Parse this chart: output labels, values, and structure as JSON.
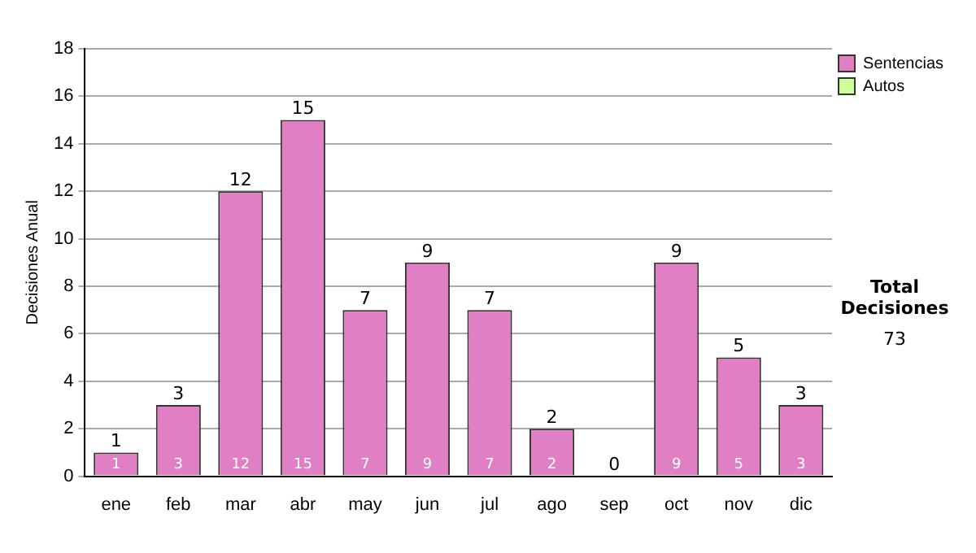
{
  "chart_data": {
    "type": "bar",
    "ylabel": "Decisiones Anual",
    "categories": [
      "ene",
      "feb",
      "mar",
      "abr",
      "may",
      "jun",
      "jul",
      "ago",
      "sep",
      "oct",
      "nov",
      "dic"
    ],
    "series": [
      {
        "name": "Sentencias",
        "color": "#e07fc4",
        "values": [
          1,
          3,
          12,
          15,
          7,
          9,
          7,
          2,
          0,
          9,
          5,
          3
        ],
        "value_labels": [
          "1",
          "3",
          "12",
          "15",
          "7",
          "9",
          "7",
          "2",
          null,
          "9",
          "5",
          "3"
        ]
      },
      {
        "name": "Autos",
        "color": "#ccff99",
        "values": [
          0,
          0,
          0,
          0,
          0,
          0,
          0,
          0,
          0,
          0,
          0,
          0
        ]
      }
    ],
    "stacked": true,
    "totals": [
      "1",
      "3",
      "12",
      "15",
      "7",
      "9",
      "7",
      "2",
      "0",
      "9",
      "5",
      "3"
    ],
    "ylim": [
      0,
      18
    ],
    "yticks": [
      0,
      2,
      4,
      6,
      8,
      10,
      12,
      14,
      16,
      18
    ],
    "grid": "y",
    "legend": "right",
    "annotations": [
      "Total Decisiones",
      "73"
    ]
  }
}
